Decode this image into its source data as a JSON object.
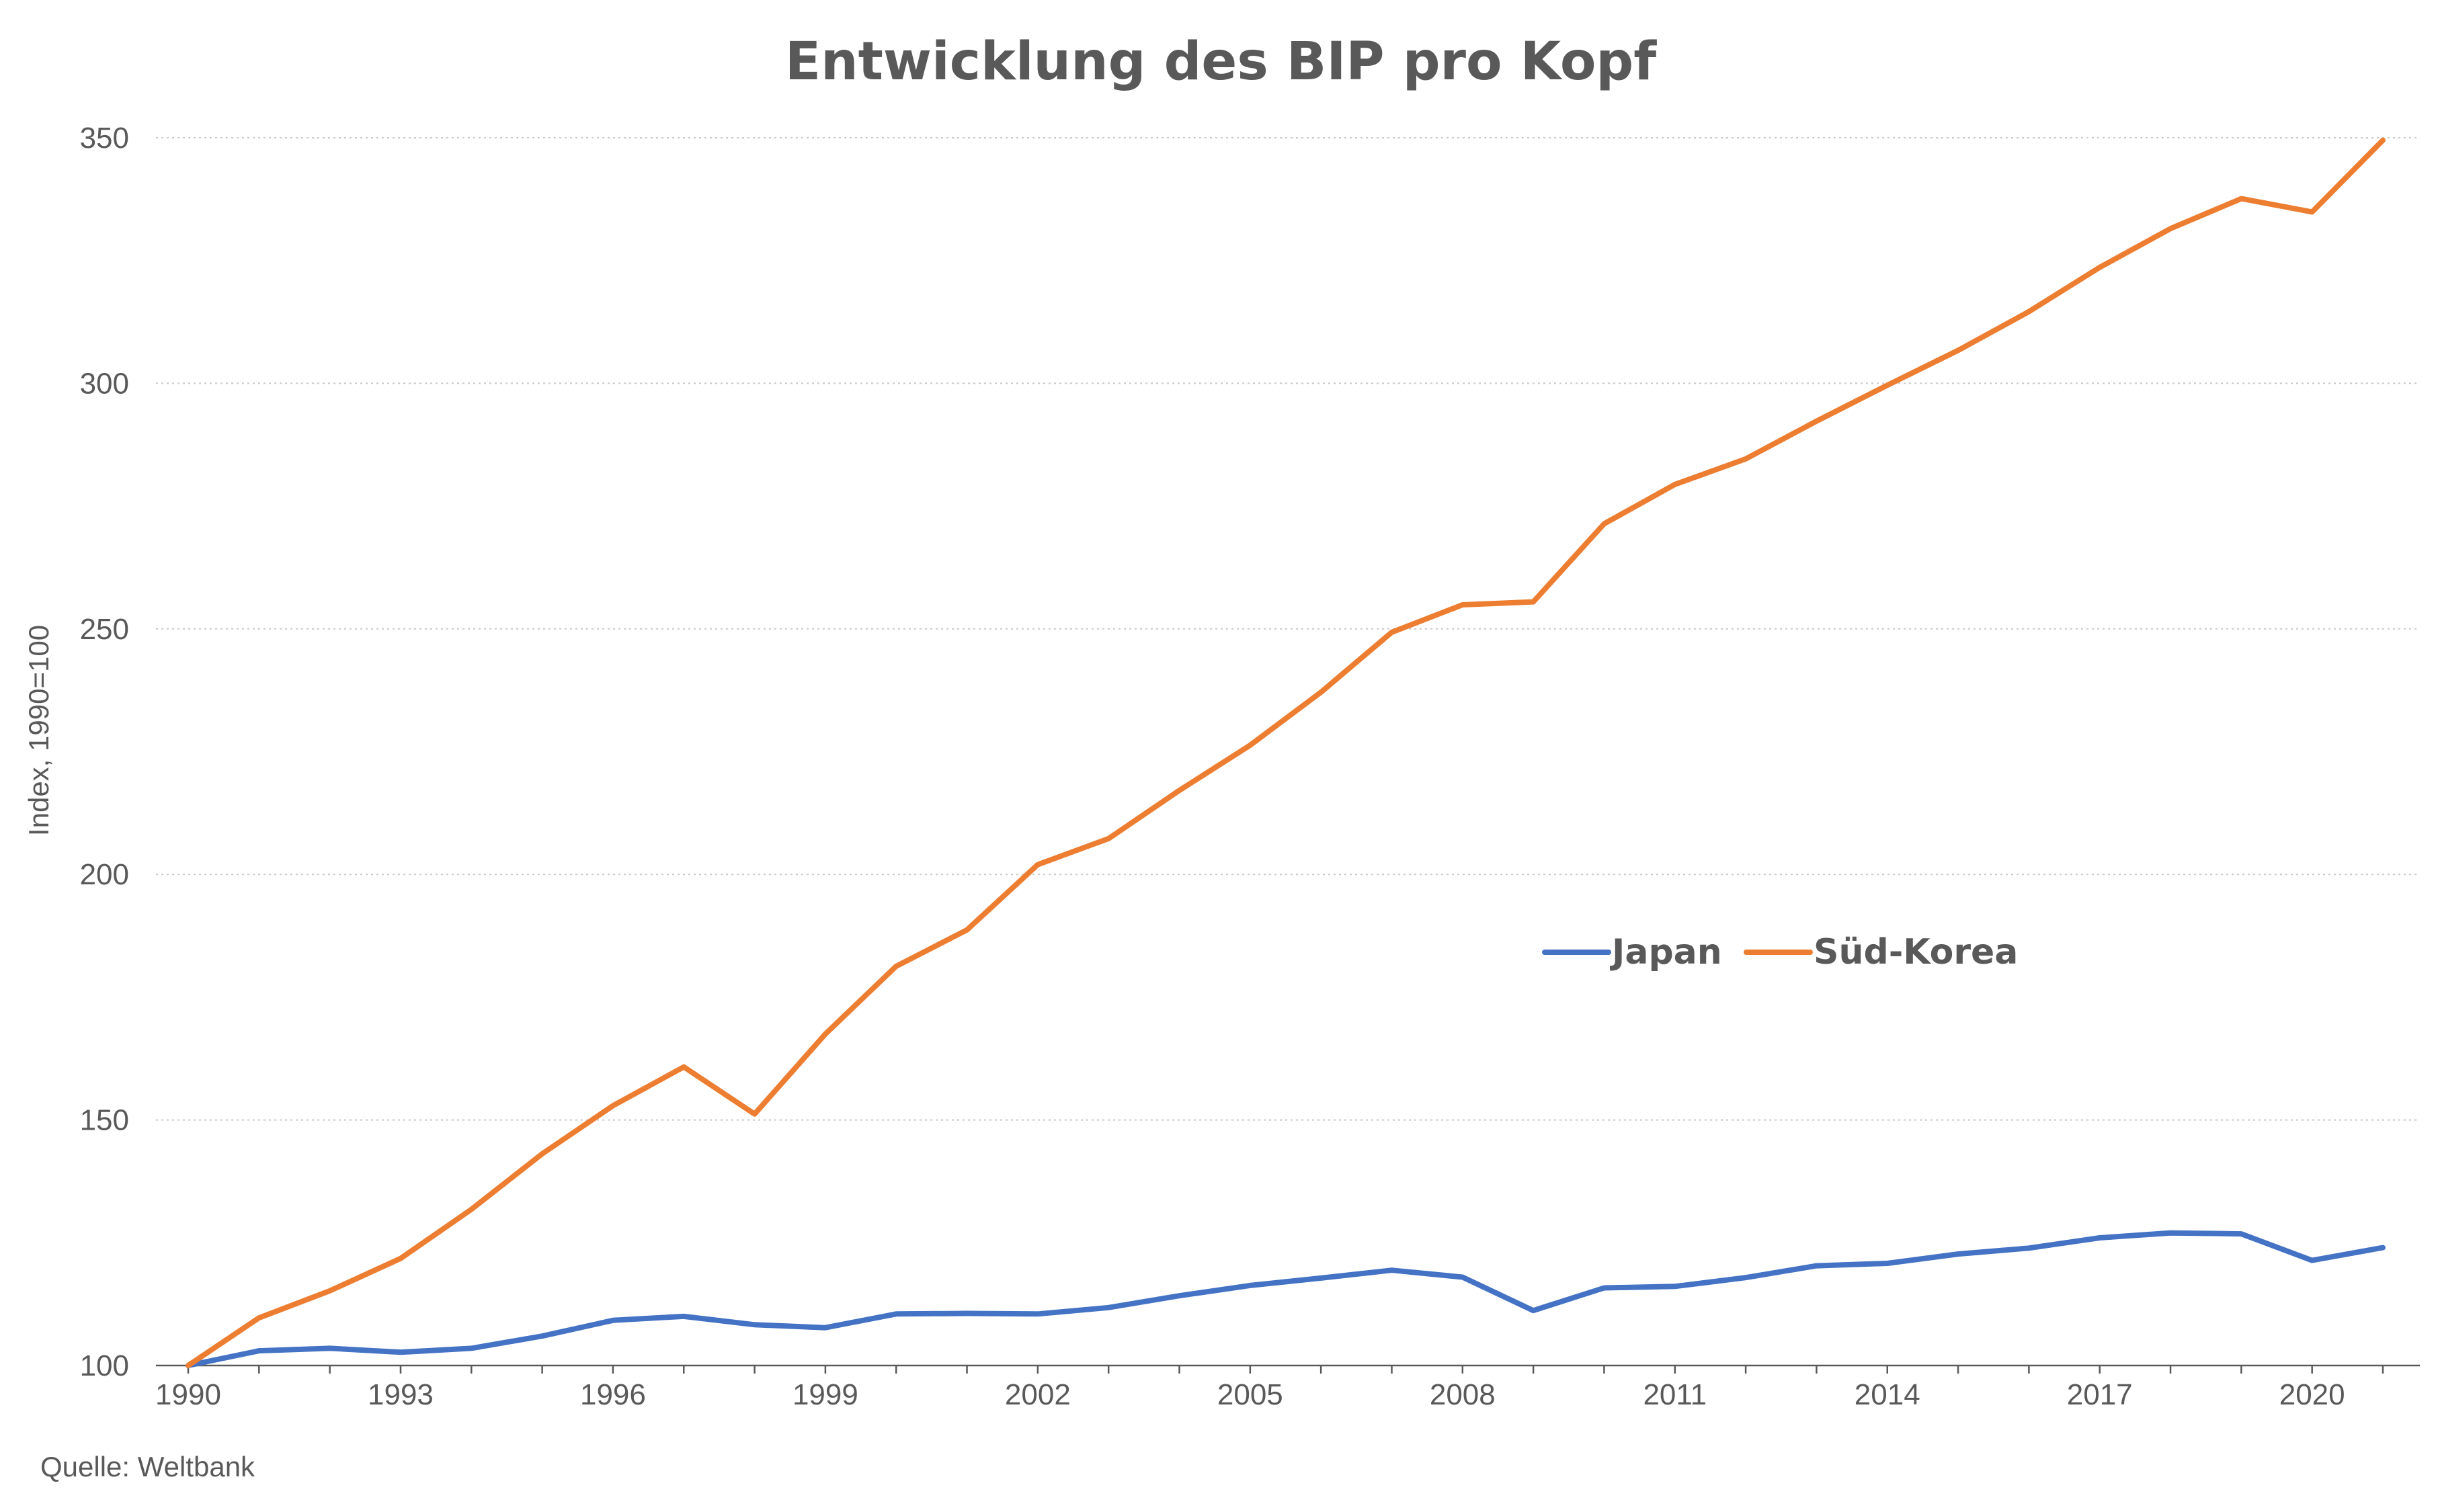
{
  "chart_data": {
    "type": "line",
    "title": "Entwicklung des BIP pro Kopf",
    "xlabel": "",
    "ylabel": "Index, 1990=100",
    "source": "Quelle: Weltbank",
    "xlim": [
      1990,
      2021
    ],
    "ylim": [
      100,
      350
    ],
    "x_ticks": [
      1990,
      1993,
      1996,
      1999,
      2002,
      2005,
      2008,
      2011,
      2014,
      2017,
      2020
    ],
    "y_ticks": [
      100,
      150,
      200,
      250,
      300,
      350
    ],
    "grid": true,
    "legend_position": "center-right",
    "x": [
      1990,
      1991,
      1992,
      1993,
      1994,
      1995,
      1996,
      1997,
      1998,
      1999,
      2000,
      2001,
      2002,
      2003,
      2004,
      2005,
      2006,
      2007,
      2008,
      2009,
      2010,
      2011,
      2012,
      2013,
      2014,
      2015,
      2016,
      2017,
      2018,
      2019,
      2020,
      2021
    ],
    "series": [
      {
        "name": "Japan",
        "color": "#4472C4",
        "values": [
          100,
          103,
          103.5,
          102.7,
          103.5,
          106,
          109.2,
          110,
          108.3,
          107.7,
          110.5,
          110.6,
          110.5,
          111.8,
          114.2,
          116.3,
          117.8,
          119.4,
          118,
          111.2,
          115.8,
          116.1,
          117.9,
          120.3,
          120.8,
          122.7,
          123.9,
          126,
          127,
          126.8,
          121.4,
          124
        ]
      },
      {
        "name": "Süd-Korea",
        "color": "#ED7D31",
        "values": [
          100,
          109.7,
          115.2,
          121.8,
          131.8,
          143.1,
          152.9,
          160.8,
          151.2,
          167.5,
          181.3,
          188.7,
          202,
          207.3,
          217.1,
          226.3,
          237.1,
          249.3,
          254.9,
          255.5,
          271.4,
          279.4,
          284.6,
          292.3,
          299.6,
          306.7,
          314.6,
          323.6,
          331.5,
          337.6,
          334.9,
          349.5
        ]
      }
    ]
  }
}
